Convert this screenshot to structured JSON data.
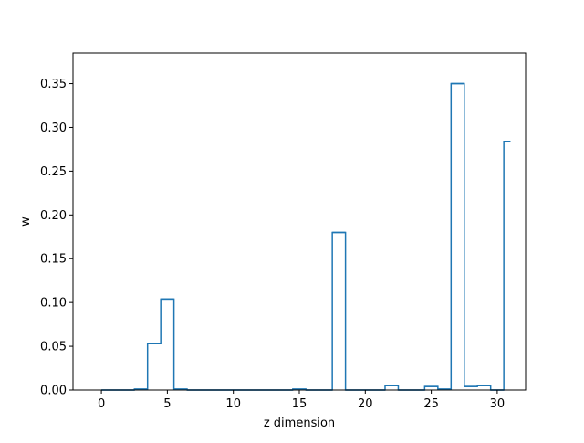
{
  "chart_data": {
    "type": "step",
    "title": "",
    "xlabel": "z dimension",
    "ylabel": "w",
    "xlim": [
      -2.15,
      32.15
    ],
    "ylim": [
      0,
      0.385
    ],
    "grid": false,
    "legend": "none",
    "xticks": [
      0,
      5,
      10,
      15,
      20,
      25,
      30
    ],
    "xtick_labels": [
      "0",
      "5",
      "10",
      "15",
      "20",
      "25",
      "30"
    ],
    "yticks": [
      0.0,
      0.05,
      0.1,
      0.15,
      0.2,
      0.25,
      0.3,
      0.35
    ],
    "ytick_labels": [
      "0.00",
      "0.05",
      "0.10",
      "0.15",
      "0.20",
      "0.25",
      "0.30",
      "0.35"
    ],
    "step_where": "mid",
    "x": [
      0,
      1,
      2,
      3,
      4,
      5,
      6,
      7,
      8,
      9,
      10,
      11,
      12,
      13,
      14,
      15,
      16,
      17,
      18,
      19,
      20,
      21,
      22,
      23,
      24,
      25,
      26,
      27,
      28,
      29,
      30,
      31
    ],
    "values": [
      0,
      0,
      0,
      0.001,
      0.053,
      0.104,
      0.001,
      0,
      0,
      0,
      0,
      0,
      0,
      0,
      0,
      0.001,
      0,
      0,
      0.18,
      0,
      0,
      0,
      0.005,
      0,
      0,
      0.004,
      0.001,
      0.35,
      0.004,
      0.005,
      0,
      0.284
    ],
    "series_color": "#1f77b4"
  }
}
